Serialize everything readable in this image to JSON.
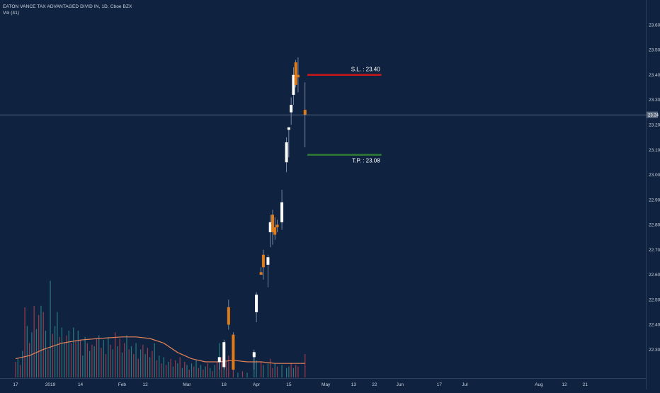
{
  "header": {
    "symbol_line": "EATON VANCE TAX ADVANTAGED DIVID IN, 1D, Cboe BZX",
    "volume_line": "Vol (41)"
  },
  "chart_data": {
    "type": "candlestick",
    "y_ticks": [
      "23.60",
      "23.50",
      "23.40",
      "23.30",
      "23.20",
      "23.10",
      "23.00",
      "22.90",
      "22.80",
      "22.70",
      "22.60",
      "22.50",
      "22.40",
      "22.30"
    ],
    "y_tick_values": [
      23.6,
      23.5,
      23.4,
      23.3,
      23.2,
      23.1,
      23.0,
      22.9,
      22.8,
      22.7,
      22.6,
      22.5,
      22.4,
      22.3
    ],
    "ylim": [
      22.22,
      23.66
    ],
    "x_ticks": [
      {
        "label": "17",
        "day": 0
      },
      {
        "label": "2019",
        "day": 15
      },
      {
        "label": "14",
        "day": 28
      },
      {
        "label": "Feb",
        "day": 46
      },
      {
        "label": "12",
        "day": 56
      },
      {
        "label": "Mar",
        "day": 74
      },
      {
        "label": "18",
        "day": 90
      },
      {
        "label": "Apr",
        "day": 104
      },
      {
        "label": "15",
        "day": 118
      },
      {
        "label": "May",
        "day": 134
      },
      {
        "label": "13",
        "day": 146
      },
      {
        "label": "22",
        "day": 155
      },
      {
        "label": "Jun",
        "day": 166
      },
      {
        "label": "17",
        "day": 183
      },
      {
        "label": "Jul",
        "day": 194
      },
      {
        "label": "Aug",
        "day": 226
      },
      {
        "label": "12",
        "day": 237
      },
      {
        "label": "21",
        "day": 246
      }
    ],
    "candles": [
      {
        "day": 88,
        "o": 22.25,
        "h": 22.27,
        "l": 22.22,
        "c": 22.27
      },
      {
        "day": 90,
        "o": 22.23,
        "h": 22.34,
        "l": 22.22,
        "c": 22.33
      },
      {
        "day": 92,
        "o": 22.47,
        "h": 22.5,
        "l": 22.38,
        "c": 22.4
      },
      {
        "day": 94,
        "o": 22.36,
        "h": 22.37,
        "l": 22.22,
        "c": 22.22
      },
      {
        "day": 103,
        "o": 22.27,
        "h": 22.3,
        "l": 22.22,
        "c": 22.29
      },
      {
        "day": 104,
        "o": 22.45,
        "h": 22.53,
        "l": 22.41,
        "c": 22.52
      },
      {
        "day": 106,
        "o": 22.61,
        "h": 22.63,
        "l": 22.6,
        "c": 22.6
      },
      {
        "day": 107,
        "o": 22.68,
        "h": 22.7,
        "l": 22.58,
        "c": 22.63
      },
      {
        "day": 109,
        "o": 22.64,
        "h": 22.68,
        "l": 22.55,
        "c": 22.67
      },
      {
        "day": 110,
        "o": 22.77,
        "h": 22.84,
        "l": 22.71,
        "c": 22.81
      },
      {
        "day": 111,
        "o": 22.84,
        "h": 22.86,
        "l": 22.72,
        "c": 22.77
      },
      {
        "day": 112,
        "o": 22.79,
        "h": 22.83,
        "l": 22.74,
        "c": 22.76
      },
      {
        "day": 113,
        "o": 22.8,
        "h": 22.82,
        "l": 22.77,
        "c": 22.79
      },
      {
        "day": 115,
        "o": 22.81,
        "h": 22.94,
        "l": 22.78,
        "c": 22.89
      },
      {
        "day": 117,
        "o": 23.05,
        "h": 23.15,
        "l": 23.01,
        "c": 23.13
      },
      {
        "day": 118,
        "o": 23.18,
        "h": 23.19,
        "l": 23.07,
        "c": 23.19
      },
      {
        "day": 119,
        "o": 23.25,
        "h": 23.31,
        "l": 23.2,
        "c": 23.28
      },
      {
        "day": 120,
        "o": 23.32,
        "h": 23.43,
        "l": 23.28,
        "c": 23.4
      },
      {
        "day": 121,
        "o": 23.45,
        "h": 23.46,
        "l": 23.35,
        "c": 23.36
      },
      {
        "day": 122,
        "o": 23.4,
        "h": 23.47,
        "l": 23.33,
        "c": 23.39
      },
      {
        "day": 125,
        "o": 23.26,
        "h": 23.37,
        "l": 23.11,
        "c": 23.24
      }
    ],
    "volume": [
      {
        "day": 0,
        "v": 0.1,
        "up": false
      },
      {
        "day": 1,
        "v": 0.12,
        "up": true
      },
      {
        "day": 2,
        "v": 0.08,
        "up": false
      },
      {
        "day": 3,
        "v": 0.17,
        "up": true
      },
      {
        "day": 4,
        "v": 0.45,
        "up": false
      },
      {
        "day": 5,
        "v": 0.33,
        "up": true
      },
      {
        "day": 6,
        "v": 0.22,
        "up": false
      },
      {
        "day": 7,
        "v": 0.29,
        "up": true
      },
      {
        "day": 8,
        "v": 0.46,
        "up": false
      },
      {
        "day": 9,
        "v": 0.31,
        "up": true
      },
      {
        "day": 10,
        "v": 0.4,
        "up": false
      },
      {
        "day": 11,
        "v": 0.46,
        "up": true
      },
      {
        "day": 12,
        "v": 0.42,
        "up": false
      },
      {
        "day": 13,
        "v": 0.3,
        "up": true
      },
      {
        "day": 14,
        "v": 0.18,
        "up": false
      },
      {
        "day": 15,
        "v": 0.62,
        "up": true
      },
      {
        "day": 16,
        "v": 0.28,
        "up": false
      },
      {
        "day": 17,
        "v": 0.33,
        "up": true
      },
      {
        "day": 18,
        "v": 0.42,
        "up": true
      },
      {
        "day": 19,
        "v": 0.26,
        "up": false
      },
      {
        "day": 20,
        "v": 0.32,
        "up": true
      },
      {
        "day": 21,
        "v": 0.22,
        "up": true
      },
      {
        "day": 22,
        "v": 0.27,
        "up": false
      },
      {
        "day": 23,
        "v": 0.3,
        "up": true
      },
      {
        "day": 24,
        "v": 0.22,
        "up": false
      },
      {
        "day": 25,
        "v": 0.32,
        "up": true
      },
      {
        "day": 26,
        "v": 0.24,
        "up": false
      },
      {
        "day": 27,
        "v": 0.3,
        "up": true
      },
      {
        "day": 28,
        "v": 0.24,
        "up": false
      },
      {
        "day": 29,
        "v": 0.14,
        "up": true
      },
      {
        "day": 30,
        "v": 0.26,
        "up": true
      },
      {
        "day": 31,
        "v": 0.22,
        "up": false
      },
      {
        "day": 32,
        "v": 0.17,
        "up": true
      },
      {
        "day": 33,
        "v": 0.21,
        "up": false
      },
      {
        "day": 34,
        "v": 0.2,
        "up": true
      },
      {
        "day": 35,
        "v": 0.25,
        "up": false
      },
      {
        "day": 36,
        "v": 0.27,
        "up": true
      },
      {
        "day": 37,
        "v": 0.19,
        "up": false
      },
      {
        "day": 38,
        "v": 0.24,
        "up": true
      },
      {
        "day": 39,
        "v": 0.15,
        "up": false
      },
      {
        "day": 40,
        "v": 0.26,
        "up": true
      },
      {
        "day": 41,
        "v": 0.21,
        "up": false
      },
      {
        "day": 42,
        "v": 0.18,
        "up": true
      },
      {
        "day": 43,
        "v": 0.29,
        "up": false
      },
      {
        "day": 44,
        "v": 0.2,
        "up": true
      },
      {
        "day": 45,
        "v": 0.25,
        "up": false
      },
      {
        "day": 46,
        "v": 0.16,
        "up": true
      },
      {
        "day": 47,
        "v": 0.22,
        "up": false
      },
      {
        "day": 48,
        "v": 0.27,
        "up": true
      },
      {
        "day": 49,
        "v": 0.18,
        "up": false
      },
      {
        "day": 50,
        "v": 0.2,
        "up": true
      },
      {
        "day": 51,
        "v": 0.15,
        "up": false
      },
      {
        "day": 52,
        "v": 0.22,
        "up": true
      },
      {
        "day": 53,
        "v": 0.12,
        "up": false
      },
      {
        "day": 54,
        "v": 0.18,
        "up": true
      },
      {
        "day": 55,
        "v": 0.21,
        "up": false
      },
      {
        "day": 56,
        "v": 0.15,
        "up": true
      },
      {
        "day": 57,
        "v": 0.19,
        "up": false
      },
      {
        "day": 58,
        "v": 0.13,
        "up": true
      },
      {
        "day": 59,
        "v": 0.17,
        "up": false
      },
      {
        "day": 60,
        "v": 0.22,
        "up": true
      },
      {
        "day": 61,
        "v": 0.11,
        "up": false
      },
      {
        "day": 62,
        "v": 0.14,
        "up": true
      },
      {
        "day": 63,
        "v": 0.09,
        "up": false
      },
      {
        "day": 64,
        "v": 0.13,
        "up": true
      },
      {
        "day": 65,
        "v": 0.08,
        "up": false
      },
      {
        "day": 66,
        "v": 0.1,
        "up": true
      },
      {
        "day": 67,
        "v": 0.12,
        "up": false
      },
      {
        "day": 68,
        "v": 0.07,
        "up": true
      },
      {
        "day": 69,
        "v": 0.11,
        "up": false
      },
      {
        "day": 70,
        "v": 0.09,
        "up": true
      },
      {
        "day": 71,
        "v": 0.13,
        "up": false
      },
      {
        "day": 72,
        "v": 0.06,
        "up": true
      },
      {
        "day": 73,
        "v": 0.1,
        "up": false
      },
      {
        "day": 74,
        "v": 0.08,
        "up": true
      },
      {
        "day": 75,
        "v": 0.05,
        "up": false
      },
      {
        "day": 76,
        "v": 0.09,
        "up": true
      },
      {
        "day": 77,
        "v": 0.07,
        "up": false
      },
      {
        "day": 78,
        "v": 0.11,
        "up": true
      },
      {
        "day": 79,
        "v": 0.06,
        "up": false
      },
      {
        "day": 80,
        "v": 0.08,
        "up": true
      },
      {
        "day": 81,
        "v": 0.05,
        "up": false
      },
      {
        "day": 82,
        "v": 0.07,
        "up": true
      },
      {
        "day": 83,
        "v": 0.09,
        "up": false
      },
      {
        "day": 84,
        "v": 0.06,
        "up": true
      },
      {
        "day": 85,
        "v": 0.04,
        "up": false
      },
      {
        "day": 86,
        "v": 0.08,
        "up": true
      },
      {
        "day": 87,
        "v": 0.1,
        "up": false
      },
      {
        "day": 88,
        "v": 0.22,
        "up": true
      },
      {
        "day": 89,
        "v": 0.13,
        "up": false
      },
      {
        "day": 90,
        "v": 0.16,
        "up": true
      },
      {
        "day": 91,
        "v": 0.1,
        "up": false
      },
      {
        "day": 92,
        "v": 0.14,
        "up": false
      },
      {
        "day": 94,
        "v": 0.05,
        "up": false
      },
      {
        "day": 96,
        "v": 0.03,
        "up": true
      },
      {
        "day": 98,
        "v": 0.04,
        "up": false
      },
      {
        "day": 100,
        "v": 0.03,
        "up": true
      },
      {
        "day": 103,
        "v": 0.14,
        "up": true
      },
      {
        "day": 104,
        "v": 0.11,
        "up": true
      },
      {
        "day": 106,
        "v": 0.1,
        "up": false
      },
      {
        "day": 107,
        "v": 0.08,
        "up": true
      },
      {
        "day": 109,
        "v": 0.09,
        "up": true
      },
      {
        "day": 110,
        "v": 0.12,
        "up": false
      },
      {
        "day": 111,
        "v": 0.06,
        "up": false
      },
      {
        "day": 112,
        "v": 0.09,
        "up": true
      },
      {
        "day": 113,
        "v": 0.07,
        "up": false
      },
      {
        "day": 115,
        "v": 0.08,
        "up": true
      },
      {
        "day": 117,
        "v": 0.06,
        "up": true
      },
      {
        "day": 118,
        "v": 0.07,
        "up": true
      },
      {
        "day": 119,
        "v": 0.09,
        "up": false
      },
      {
        "day": 120,
        "v": 0.06,
        "up": true
      },
      {
        "day": 121,
        "v": 0.08,
        "up": false
      },
      {
        "day": 122,
        "v": 0.07,
        "up": false
      },
      {
        "day": 125,
        "v": 0.15,
        "up": false
      }
    ],
    "volume_ma": [
      {
        "day": 0,
        "v": 0.12
      },
      {
        "day": 6,
        "v": 0.14
      },
      {
        "day": 12,
        "v": 0.18
      },
      {
        "day": 20,
        "v": 0.22
      },
      {
        "day": 28,
        "v": 0.24
      },
      {
        "day": 36,
        "v": 0.25
      },
      {
        "day": 46,
        "v": 0.26
      },
      {
        "day": 52,
        "v": 0.26
      },
      {
        "day": 58,
        "v": 0.25
      },
      {
        "day": 64,
        "v": 0.22
      },
      {
        "day": 70,
        "v": 0.16
      },
      {
        "day": 76,
        "v": 0.12
      },
      {
        "day": 82,
        "v": 0.1
      },
      {
        "day": 88,
        "v": 0.1
      },
      {
        "day": 94,
        "v": 0.11
      },
      {
        "day": 100,
        "v": 0.1
      },
      {
        "day": 106,
        "v": 0.1
      },
      {
        "day": 112,
        "v": 0.09
      },
      {
        "day": 118,
        "v": 0.09
      },
      {
        "day": 125,
        "v": 0.09
      }
    ],
    "levels": [
      {
        "label": "S.L. : 23.40",
        "price": 23.4,
        "color": "#c8171b",
        "start_day": 126,
        "end_day": 158
      },
      {
        "label": "T.P. : 23.08",
        "price": 23.08,
        "color": "#2e7d32",
        "start_day": 126,
        "end_day": 158
      }
    ],
    "current_price": {
      "label": "23.24",
      "value": 23.24
    },
    "colors": {
      "background": "#0f2340",
      "up": "#ffffff",
      "down": "#e07b1a",
      "vol_up": "#2f8a88",
      "vol_down": "#b4404e",
      "vol_ma": "#e4825a",
      "grid": "#1d3352",
      "crosshair": "#7a8aa3"
    }
  }
}
